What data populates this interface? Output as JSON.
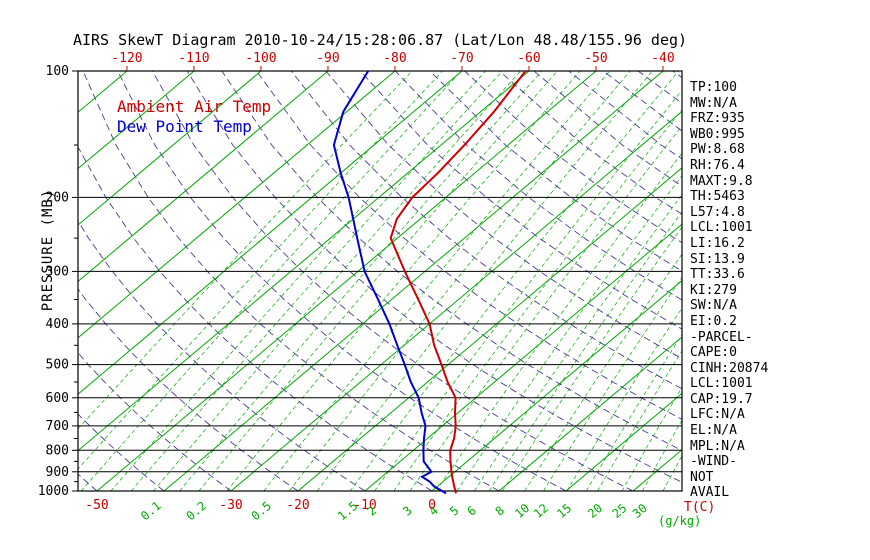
{
  "title": "AIRS SkewT Diagram 2010-10-24/15:28:06.87 (Lat/Lon 48.48/155.96 deg)",
  "legend": {
    "temp": "Ambient Air Temp",
    "dewpoint": "Dew Point Temp"
  },
  "axes": {
    "pressure_label": "PRESSURE (MB)",
    "pressure_ticks": [
      100,
      200,
      300,
      400,
      500,
      600,
      700,
      800,
      900,
      1000
    ],
    "top_temp_ticks": [
      -120,
      -110,
      -100,
      -90,
      -80,
      -70,
      -60,
      -50,
      -40
    ],
    "bottom_temp_ticks": [
      -50,
      -30,
      -20,
      -10,
      0
    ],
    "mixing_ratio_ticks": [
      "0.1",
      "0.2",
      "0.5",
      "1.5",
      "2",
      "3",
      "4",
      "5",
      "6",
      "8",
      "10",
      "12",
      "15",
      "20",
      "25",
      "30"
    ],
    "temp_unit_label": "T(C)",
    "mixing_unit_label": "(g/kg)"
  },
  "panel": {
    "lines": [
      "TP:100",
      "MW:N/A",
      "FRZ:935",
      "WB0:995",
      "PW:8.68",
      "RH:76.4",
      "MAXT:9.8",
      "TH:5463",
      "L57:4.8",
      "LCL:1001",
      "LI:16.2",
      "SI:13.9",
      "TT:33.6",
      "KI:279",
      "SW:N/A",
      "EI:0.2",
      "-PARCEL-",
      "CAPE:0",
      "CINH:20874",
      "LCL:1001",
      "CAP:19.7",
      "LFC:N/A",
      "EL:N/A",
      "MPL:N/A",
      "-WIND-",
      "NOT",
      "AVAIL"
    ]
  },
  "colors": {
    "temp": "#cc0000",
    "dewpoint": "#0000cc",
    "isotherm": "#00aa00",
    "adiabat": "#483d8b",
    "axis": "#000000",
    "background": "#ffffff"
  },
  "chart_data": {
    "type": "line",
    "title": "AIRS SkewT Diagram 2010-10-24/15:28:06.87 (Lat/Lon 48.48/155.96 deg)",
    "xlabel": "T(C)",
    "ylabel": "PRESSURE (MB)",
    "y_scale": "log",
    "ylim": [
      1050,
      100
    ],
    "x_range_at_1000mb": [
      -53,
      37
    ],
    "x_range_at_100mb": [
      -127,
      -37
    ],
    "skew": "45deg",
    "legend_position": "top-left-inside",
    "series": [
      {
        "name": "Ambient Air Temp",
        "color": "#cc0000",
        "pressure": [
          1013,
          1000,
          975,
          950,
          925,
          900,
          850,
          800,
          750,
          700,
          650,
          600,
          550,
          500,
          450,
          400,
          350,
          300,
          250,
          225,
          200,
          175,
          150,
          125,
          100
        ],
        "temp": [
          4,
          3.5,
          2.5,
          1.5,
          0.5,
          -0.5,
          -2.5,
          -4.5,
          -6,
          -8,
          -10.5,
          -13,
          -17,
          -21,
          -25.5,
          -30,
          -36,
          -43,
          -51,
          -53.5,
          -55,
          -55.5,
          -56.5,
          -58,
          -60.5
        ]
      },
      {
        "name": "Dew Point Temp",
        "color": "#0000cc",
        "pressure": [
          1013,
          1000,
          975,
          950,
          925,
          900,
          850,
          800,
          750,
          700,
          650,
          600,
          550,
          500,
          450,
          400,
          350,
          300,
          250,
          225,
          200,
          175,
          150,
          125,
          100
        ],
        "temp": [
          2.5,
          1.5,
          -0.5,
          -2,
          -4,
          -3.5,
          -6.5,
          -8.5,
          -10.5,
          -12.5,
          -15.5,
          -18.5,
          -22.5,
          -26.5,
          -31,
          -36,
          -42,
          -49,
          -56,
          -60,
          -64.5,
          -70,
          -76,
          -80.5,
          -84
        ]
      }
    ],
    "isotherms_c": {
      "min": -150,
      "max": 40,
      "step": 10
    },
    "dry_adiabats_c": {
      "min": -60,
      "max": 180,
      "step": 10
    },
    "mixing_ratio_lines_gkg": [
      0.01,
      0.02,
      0.03,
      0.05,
      0.07,
      0.1,
      0.15,
      0.2,
      0.3,
      0.5,
      0.7,
      1,
      1.5,
      2,
      2.5,
      3,
      4,
      5,
      6,
      7,
      8,
      10,
      12,
      15,
      18,
      20,
      25,
      30,
      36,
      44
    ]
  }
}
